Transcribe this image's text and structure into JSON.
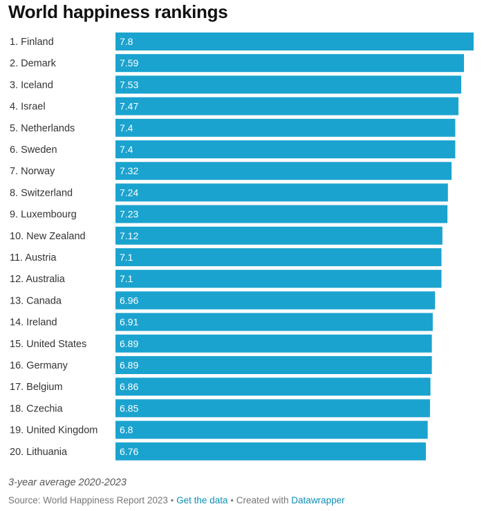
{
  "chart_data": {
    "type": "bar",
    "orientation": "horizontal",
    "title": "World happiness rankings",
    "categories": [
      "1. Finland",
      "2. Demark",
      "3. Iceland",
      "4. Israel",
      "5. Netherlands",
      "6. Sweden",
      "7. Norway",
      "8. Switzerland",
      "9. Luxembourg",
      "10. New Zealand",
      "11. Austria",
      "12. Australia",
      "13. Canada",
      "14. Ireland",
      "15. United States",
      "16. Germany",
      "17. Belgium",
      "18. Czechia",
      "19. United Kingdom",
      "20. Lithuania"
    ],
    "values": [
      7.8,
      7.59,
      7.53,
      7.47,
      7.4,
      7.4,
      7.32,
      7.24,
      7.23,
      7.12,
      7.1,
      7.1,
      6.96,
      6.91,
      6.89,
      6.89,
      6.86,
      6.85,
      6.8,
      6.76
    ],
    "value_labels": [
      "7.8",
      "7.59",
      "7.53",
      "7.47",
      "7.4",
      "7.4",
      "7.32",
      "7.24",
      "7.23",
      "7.12",
      "7.1",
      "7.1",
      "6.96",
      "6.91",
      "6.89",
      "6.89",
      "6.86",
      "6.85",
      "6.8",
      "6.76"
    ],
    "xlim": [
      0,
      7.8
    ],
    "grid": false,
    "bar_color": "#1ba3cf"
  },
  "notes": {
    "subtitle": "3-year average 2020-2023"
  },
  "footer": {
    "source": "Source: World Happiness Report 2023",
    "separator": "•",
    "get_data": "Get the data",
    "created_with": "Created with",
    "datawrapper": "Datawrapper"
  },
  "colors": {
    "bar": "#1ba3cf",
    "link": "#0d8fb5"
  }
}
